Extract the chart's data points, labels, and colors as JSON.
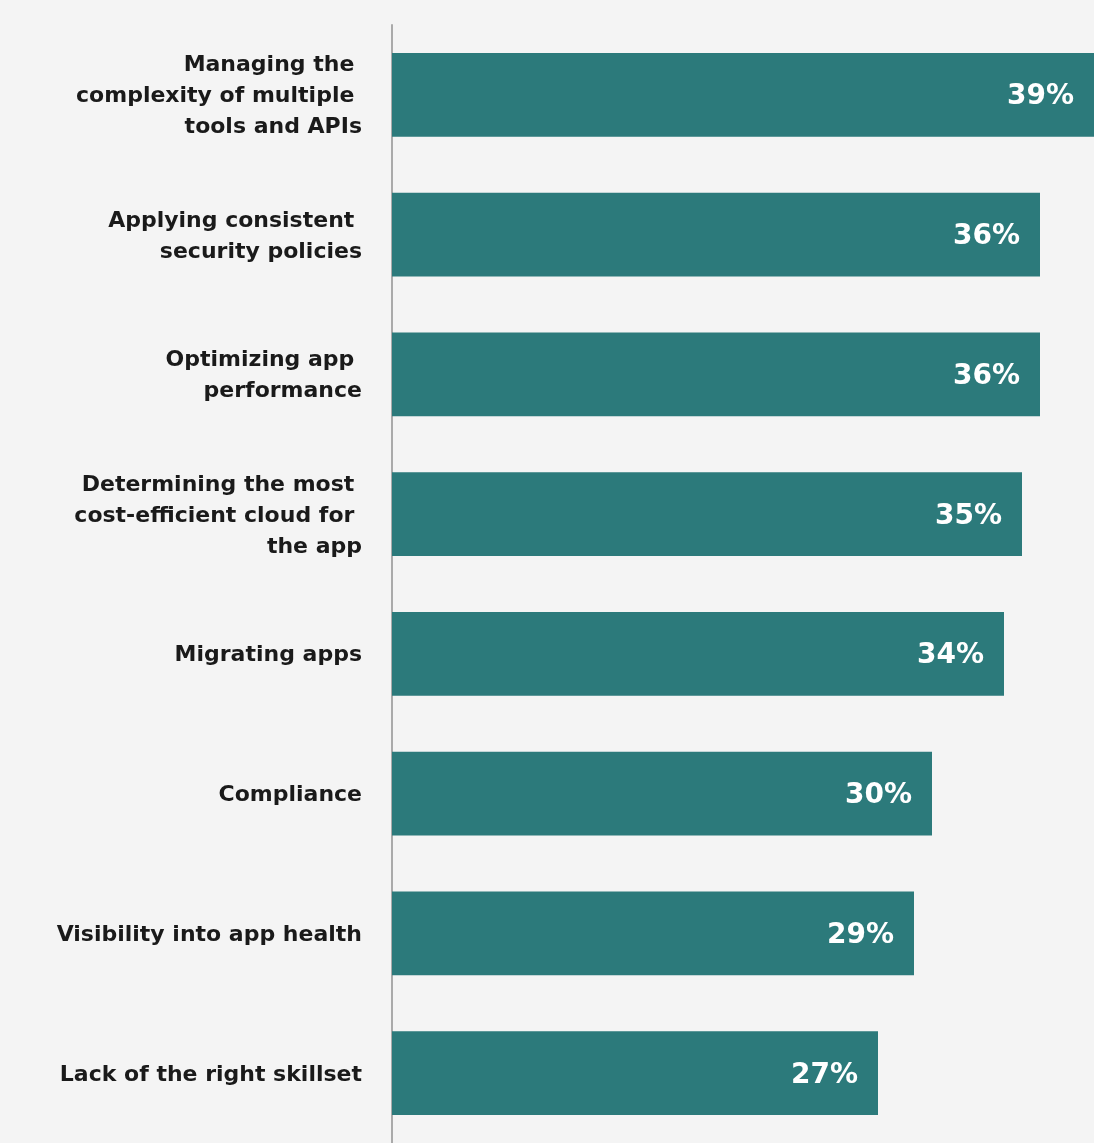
{
  "chart_data": {
    "type": "bar",
    "orientation": "horizontal",
    "categories": [
      "Managing the complexity of multiple tools and APIs",
      "Applying consistent security policies",
      "Optimizing app performance",
      "Determining the most cost-efficient cloud for the app",
      "Migrating apps",
      "Compliance",
      "Visibility into app health",
      "Lack of the right skillset"
    ],
    "values": [
      39,
      36,
      36,
      35,
      34,
      30,
      29,
      27
    ],
    "value_labels": [
      "39%",
      "36%",
      "36%",
      "35%",
      "34%",
      "30%",
      "29%",
      "27%"
    ],
    "color": "#2c7a7b",
    "tick_labels": "y",
    "grid": false
  }
}
